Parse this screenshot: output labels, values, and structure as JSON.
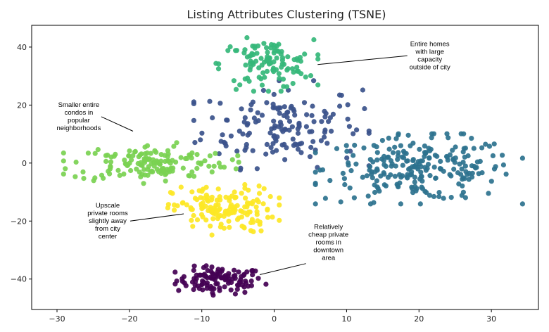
{
  "chart_data": {
    "type": "scatter",
    "title": "Listing Attributes Clustering (TSNE)",
    "xlabel": "",
    "ylabel": "",
    "xlim": [
      -33.5,
      36.5
    ],
    "ylim": [
      -50.5,
      47.5
    ],
    "xticks": [
      -30,
      -20,
      -10,
      0,
      10,
      20,
      30
    ],
    "yticks": [
      -40,
      -20,
      0,
      20,
      40
    ],
    "xtick_labels": [
      "−30",
      "−20",
      "−10",
      "0",
      "10",
      "20",
      "30"
    ],
    "ytick_labels": [
      "−40",
      "−20",
      "0",
      "20",
      "40"
    ],
    "grid": false,
    "clusters": [
      {
        "id": "purple",
        "color": "#440154",
        "center": [
          -7.5,
          -40.5
        ],
        "spread": [
          3.0,
          2.3
        ],
        "count": 110
      },
      {
        "id": "navy",
        "color": "#3b528b",
        "center": [
          1,
          13
        ],
        "spread": [
          5.5,
          7.0
        ],
        "count": 150
      },
      {
        "id": "teal",
        "color": "#2c728e",
        "center": [
          20,
          -2
        ],
        "spread": [
          6.5,
          5.5
        ],
        "count": 240
      },
      {
        "id": "green",
        "color": "#35b779",
        "center": [
          -1,
          34
        ],
        "spread": [
          3.2,
          4.2
        ],
        "count": 110
      },
      {
        "id": "lime",
        "color": "#7ad151",
        "center": [
          -17,
          0
        ],
        "spread": [
          5.5,
          3.2
        ],
        "count": 150
      },
      {
        "id": "yellow",
        "color": "#fde725",
        "center": [
          -7,
          -16
        ],
        "spread": [
          3.5,
          4.0
        ],
        "count": 150
      }
    ],
    "annotations": [
      {
        "lines": [
          "Entire homes",
          "with large",
          "capacity",
          "outside of city"
        ],
        "text_at": [
          21.5,
          37
        ],
        "arrow_to": [
          6,
          34
        ]
      },
      {
        "lines": [
          "Smaller entire",
          "condos in",
          "popular",
          "neighborhoods"
        ],
        "text_at": [
          -27,
          16
        ],
        "arrow_to": [
          -19.5,
          11
        ]
      },
      {
        "lines": [
          "Upscale",
          "private rooms",
          "slightly away",
          "from city",
          "center"
        ],
        "text_at": [
          -23,
          -20
        ],
        "arrow_to": [
          -12.5,
          -17.5
        ]
      },
      {
        "lines": [
          "Relatively",
          "cheap private",
          "rooms in",
          "downtown",
          "area"
        ],
        "text_at": [
          7.5,
          -27.5
        ],
        "arrow_to": [
          -2,
          -38.5
        ]
      }
    ]
  }
}
